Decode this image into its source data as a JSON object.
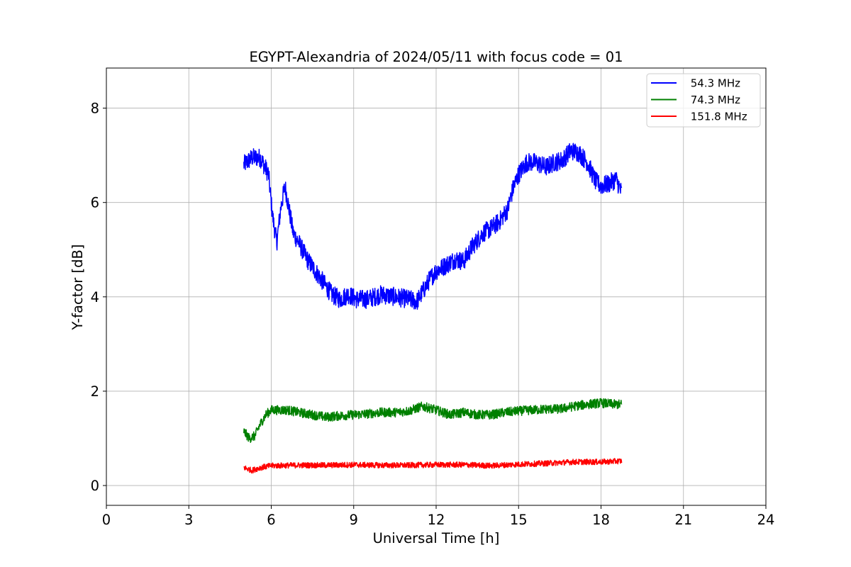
{
  "chart_data": {
    "type": "line",
    "title": "EGYPT-Alexandria of 2024/05/11 with focus code = 01",
    "xlabel": "Universal Time [h]",
    "ylabel": "Y-factor [dB]",
    "xlim": [
      0,
      24
    ],
    "ylim": [
      -0.42,
      8.85
    ],
    "xticks": [
      0,
      3,
      6,
      9,
      12,
      15,
      18,
      21,
      24
    ],
    "yticks": [
      0,
      2,
      4,
      6,
      8
    ],
    "grid": true,
    "legend_position": "top-right",
    "series": [
      {
        "name": " 54.3 MHz",
        "color": "#0000ff",
        "noise": 0.2,
        "x": [
          5.0,
          5.3,
          5.6,
          5.9,
          6.05,
          6.2,
          6.35,
          6.5,
          6.65,
          6.8,
          7.0,
          7.3,
          7.6,
          7.9,
          8.2,
          8.5,
          8.8,
          9.1,
          9.5,
          10.0,
          10.5,
          11.0,
          11.3,
          11.6,
          11.8,
          12.0,
          12.3,
          12.7,
          13.0,
          13.3,
          13.7,
          14.0,
          14.3,
          14.6,
          14.8,
          15.0,
          15.3,
          15.6,
          16.0,
          16.3,
          16.6,
          16.9,
          17.2,
          17.5,
          17.8,
          18.0,
          18.3,
          18.55,
          18.75
        ],
        "y": [
          6.8,
          6.95,
          6.95,
          6.6,
          5.7,
          5.15,
          5.9,
          6.35,
          5.85,
          5.35,
          5.15,
          4.8,
          4.55,
          4.3,
          4.05,
          3.95,
          4.05,
          3.95,
          3.95,
          4.05,
          4.0,
          3.95,
          3.9,
          4.2,
          4.4,
          4.55,
          4.65,
          4.8,
          4.75,
          5.05,
          5.35,
          5.45,
          5.6,
          5.85,
          6.3,
          6.6,
          6.85,
          6.85,
          6.75,
          6.85,
          6.9,
          7.1,
          7.05,
          6.85,
          6.45,
          6.35,
          6.4,
          6.5,
          6.2
        ]
      },
      {
        "name": " 74.3 MHz",
        "color": "#008000",
        "noise": 0.1,
        "x": [
          5.0,
          5.2,
          5.4,
          5.6,
          5.8,
          6.0,
          6.3,
          6.6,
          7.0,
          7.5,
          8.0,
          8.5,
          9.0,
          9.5,
          10.0,
          10.5,
          11.0,
          11.5,
          12.0,
          12.5,
          13.0,
          13.5,
          14.0,
          14.5,
          15.0,
          15.5,
          16.0,
          16.5,
          17.0,
          17.5,
          18.0,
          18.5,
          18.75
        ],
        "y": [
          1.15,
          1.0,
          1.05,
          1.3,
          1.5,
          1.6,
          1.6,
          1.6,
          1.55,
          1.5,
          1.45,
          1.48,
          1.5,
          1.52,
          1.55,
          1.55,
          1.58,
          1.68,
          1.6,
          1.5,
          1.55,
          1.5,
          1.5,
          1.55,
          1.58,
          1.6,
          1.62,
          1.62,
          1.68,
          1.72,
          1.75,
          1.72,
          1.72
        ]
      },
      {
        "name": " 151.8 MHz",
        "color": "#ff0000",
        "noise": 0.06,
        "x": [
          5.0,
          5.3,
          5.6,
          6.0,
          7.0,
          8.0,
          9.0,
          10.0,
          11.0,
          12.0,
          13.0,
          14.0,
          15.0,
          16.0,
          17.0,
          18.0,
          18.75
        ],
        "y": [
          0.38,
          0.32,
          0.38,
          0.42,
          0.43,
          0.43,
          0.44,
          0.43,
          0.43,
          0.44,
          0.44,
          0.42,
          0.45,
          0.47,
          0.5,
          0.5,
          0.52
        ]
      }
    ]
  }
}
